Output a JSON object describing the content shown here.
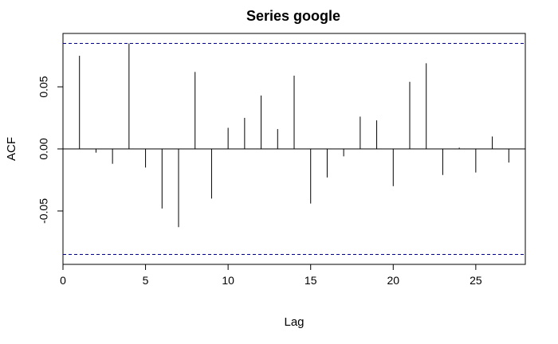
{
  "chart_data": {
    "type": "bar",
    "title": "Series google",
    "xlabel": "Lag",
    "ylabel": "ACF",
    "xlim": [
      0,
      28
    ],
    "ylim": [
      -0.093,
      0.093
    ],
    "x_ticks": [
      0,
      5,
      10,
      15,
      20,
      25
    ],
    "x_tick_labels": [
      "0",
      "5",
      "10",
      "15",
      "20",
      "25"
    ],
    "y_ticks": [
      -0.05,
      0.0,
      0.05
    ],
    "y_tick_labels": [
      "-0.05",
      "0.00",
      "0.05"
    ],
    "confidence_band": [
      -0.085,
      0.085
    ],
    "grid": false,
    "colors": {
      "bars": "#000000",
      "zero_line": "#000000",
      "confidence_lines": "#00008b",
      "frame": "#000000"
    },
    "lags": [
      1,
      2,
      3,
      4,
      5,
      6,
      7,
      8,
      9,
      10,
      11,
      12,
      13,
      14,
      15,
      16,
      17,
      18,
      19,
      20,
      21,
      22,
      23,
      24,
      25,
      26,
      27
    ],
    "values": [
      0.075,
      -0.003,
      -0.012,
      0.085,
      -0.015,
      -0.048,
      -0.063,
      0.062,
      -0.04,
      0.017,
      0.025,
      0.043,
      0.016,
      0.059,
      -0.044,
      -0.023,
      -0.006,
      0.026,
      0.023,
      -0.03,
      0.054,
      0.069,
      -0.021,
      0.001,
      -0.019,
      0.01,
      -0.011
    ]
  }
}
